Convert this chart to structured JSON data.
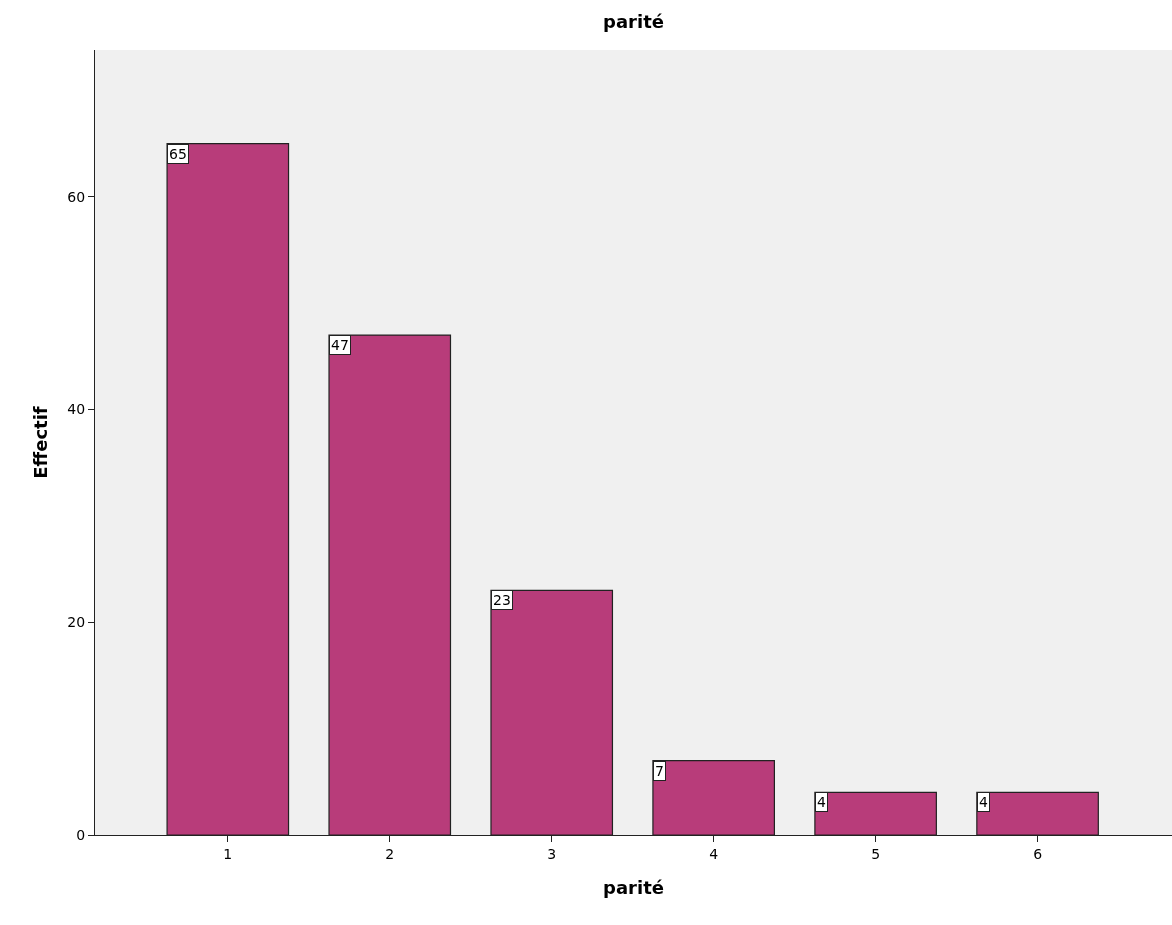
{
  "chart_data": {
    "type": "bar",
    "title": "parité",
    "xlabel": "parité",
    "ylabel": "Effectif",
    "categories": [
      "1",
      "2",
      "3",
      "4",
      "5",
      "6"
    ],
    "values": [
      65,
      47,
      23,
      7,
      4,
      4
    ],
    "color": "#b83c7a",
    "ylim": [
      0,
      73.8
    ],
    "yticks": [
      0,
      20,
      40,
      60
    ],
    "grid": false,
    "legend": false,
    "data_labels": true
  }
}
